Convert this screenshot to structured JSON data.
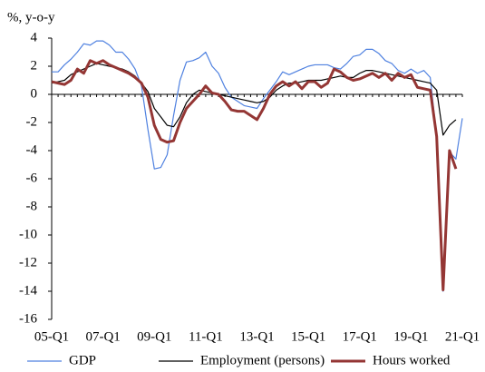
{
  "chart_data": {
    "type": "line",
    "y_label": "%, y-o-y",
    "categories": [
      "05-Q1",
      null,
      null,
      null,
      null,
      null,
      null,
      null,
      "07-Q1",
      null,
      null,
      null,
      null,
      null,
      null,
      null,
      "09-Q1",
      null,
      null,
      null,
      null,
      null,
      null,
      null,
      "11-Q1",
      null,
      null,
      null,
      null,
      null,
      null,
      null,
      "13-Q1",
      null,
      null,
      null,
      null,
      null,
      null,
      null,
      "15-Q1",
      null,
      null,
      null,
      null,
      null,
      null,
      null,
      "17-Q1",
      null,
      null,
      null,
      null,
      null,
      null,
      null,
      "19-Q1",
      null,
      null,
      null,
      null,
      null,
      null,
      null,
      "21-Q1"
    ],
    "series": [
      {
        "name": "GDP",
        "color": "#4f81e0",
        "width": 1.2,
        "values": [
          1.6,
          1.6,
          2.1,
          2.5,
          3.0,
          3.6,
          3.5,
          3.8,
          3.8,
          3.5,
          3.0,
          3.0,
          2.5,
          1.8,
          0.6,
          -2.5,
          -5.3,
          -5.2,
          -4.3,
          -1.5,
          1.0,
          2.3,
          2.4,
          2.6,
          3.0,
          2.0,
          1.5,
          0.5,
          -0.2,
          -0.5,
          -0.8,
          -0.9,
          -1.0,
          -0.3,
          0.3,
          0.9,
          1.6,
          1.4,
          1.6,
          1.8,
          2.0,
          2.1,
          2.1,
          2.1,
          1.9,
          1.8,
          2.2,
          2.7,
          2.8,
          3.2,
          3.2,
          2.9,
          2.4,
          2.2,
          1.7,
          1.5,
          1.8,
          1.5,
          1.7,
          1.2,
          -3.0,
          -14.0,
          -4.1,
          -4.6,
          -1.7
        ]
      },
      {
        "name": "Employment (persons)",
        "color": "#000000",
        "width": 1.2,
        "values": [
          0.8,
          0.9,
          1.0,
          1.4,
          1.6,
          1.8,
          2.0,
          2.2,
          2.1,
          2.0,
          1.9,
          1.8,
          1.6,
          1.3,
          0.8,
          0.2,
          -1.0,
          -1.6,
          -2.2,
          -2.3,
          -1.6,
          -0.6,
          0.0,
          0.3,
          0.2,
          0.1,
          0.0,
          -0.1,
          -0.2,
          -0.3,
          -0.4,
          -0.5,
          -0.6,
          -0.5,
          -0.2,
          0.3,
          0.6,
          0.8,
          0.8,
          0.9,
          1.0,
          1.0,
          1.0,
          1.1,
          1.2,
          1.3,
          1.2,
          1.2,
          1.5,
          1.7,
          1.7,
          1.6,
          1.5,
          1.4,
          1.3,
          1.2,
          1.1,
          1.0,
          0.9,
          0.8,
          0.3,
          -2.9,
          -2.2,
          -1.8,
          null
        ]
      },
      {
        "name": "Hours worked",
        "color": "#943634",
        "width": 3,
        "values": [
          0.9,
          0.8,
          0.7,
          1.0,
          1.8,
          1.5,
          2.4,
          2.2,
          2.4,
          2.1,
          1.9,
          1.7,
          1.5,
          1.2,
          0.8,
          -0.2,
          -2.2,
          -3.2,
          -3.4,
          -3.3,
          -2.0,
          -1.0,
          -0.5,
          0.0,
          0.6,
          0.1,
          0.0,
          -0.5,
          -1.1,
          -1.2,
          -1.2,
          -1.5,
          -1.8,
          -1.0,
          0.0,
          0.6,
          0.9,
          0.6,
          0.9,
          0.4,
          0.9,
          0.9,
          0.5,
          0.8,
          1.8,
          1.6,
          1.2,
          1.0,
          1.1,
          1.3,
          1.5,
          1.2,
          1.5,
          1.0,
          1.5,
          1.2,
          1.4,
          0.5,
          0.4,
          0.3,
          -3.0,
          -13.9,
          -4.0,
          -5.3,
          null
        ]
      }
    ],
    "ylim": [
      -16,
      4
    ],
    "yticks": [
      4,
      2,
      0,
      -2,
      -4,
      -6,
      -8,
      -10,
      -12,
      -14,
      -16
    ],
    "legend": "bottom"
  }
}
